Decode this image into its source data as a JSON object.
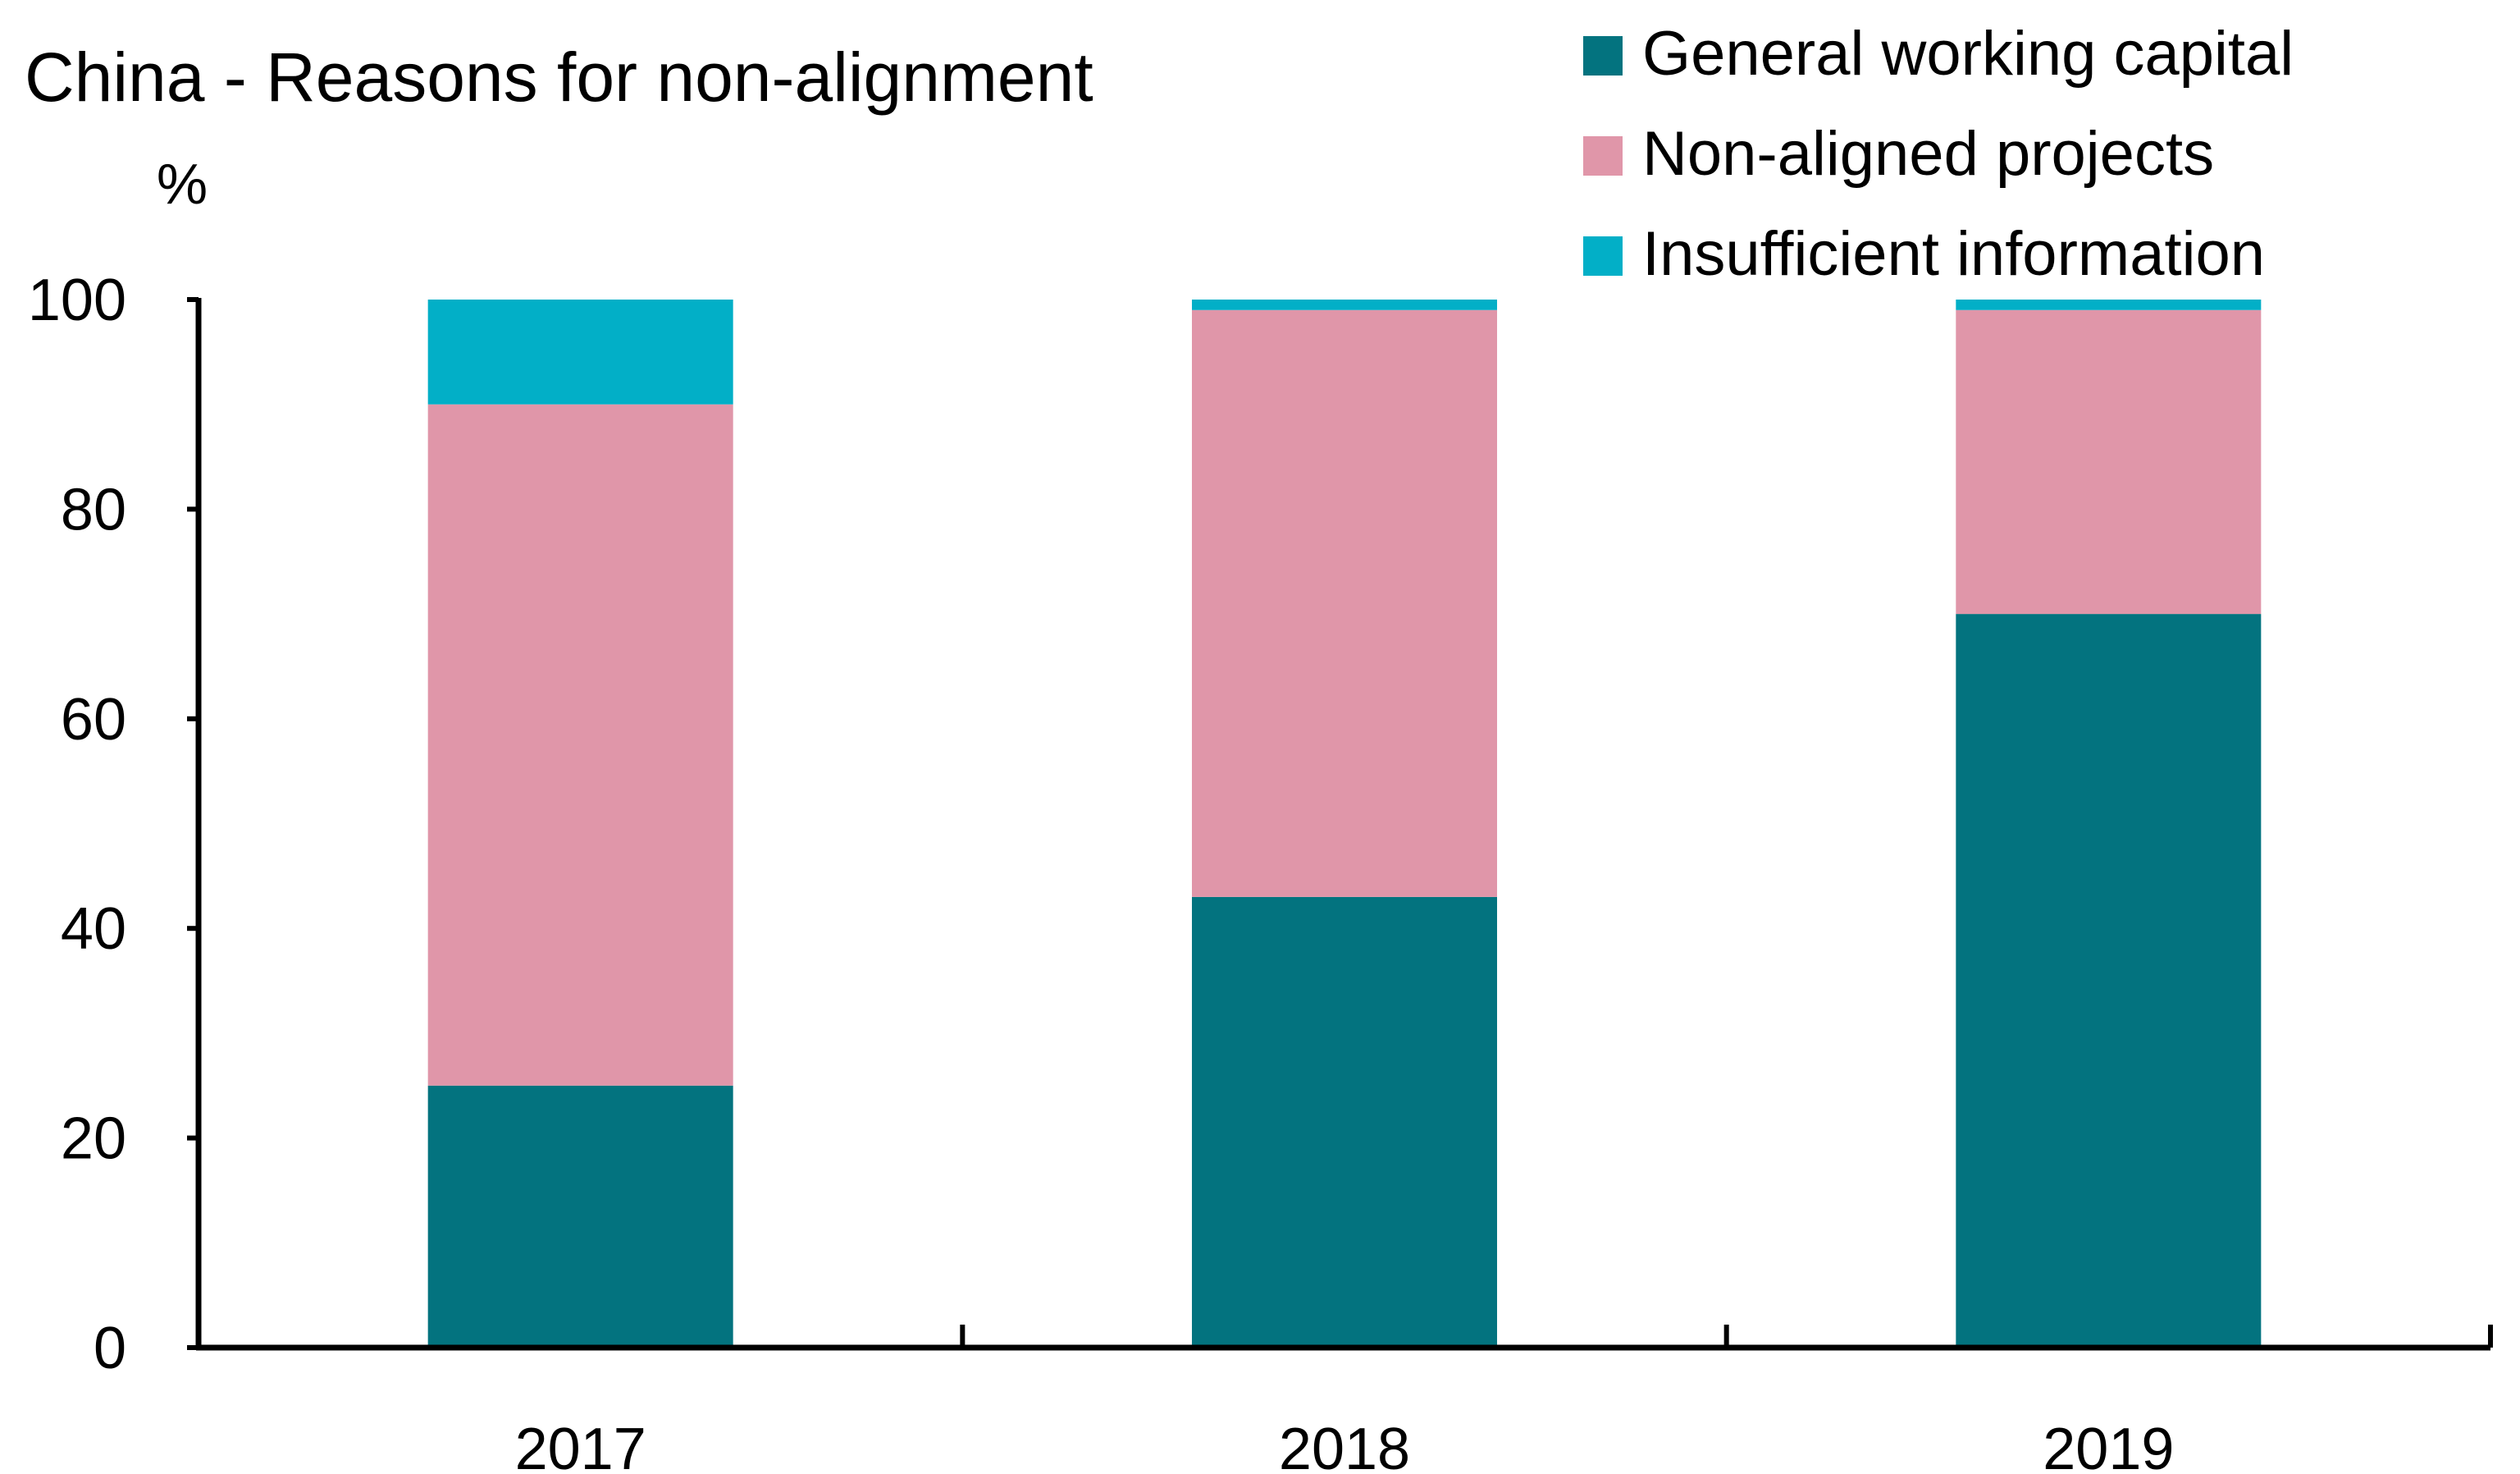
{
  "chart_data": {
    "type": "bar",
    "stacked": true,
    "title": "China - Reasons for non-alignment",
    "unit_label": "%",
    "xlabel": "",
    "ylabel": "",
    "categories": [
      "2017",
      "2018",
      "2019"
    ],
    "series": [
      {
        "name": "General working capital",
        "values": [
          25,
          43,
          70
        ],
        "color": "#03737f"
      },
      {
        "name": "Non-aligned projects",
        "values": [
          65,
          56,
          29
        ],
        "color": "#e096a9"
      },
      {
        "name": "Insufficient information",
        "values": [
          10,
          1,
          1
        ],
        "color": "#02afc7"
      }
    ],
    "ylim": [
      0,
      100
    ],
    "yticks": [
      "0",
      "20",
      "40",
      "60",
      "80",
      "100"
    ],
    "grid": false,
    "legend_position": "top-right"
  }
}
